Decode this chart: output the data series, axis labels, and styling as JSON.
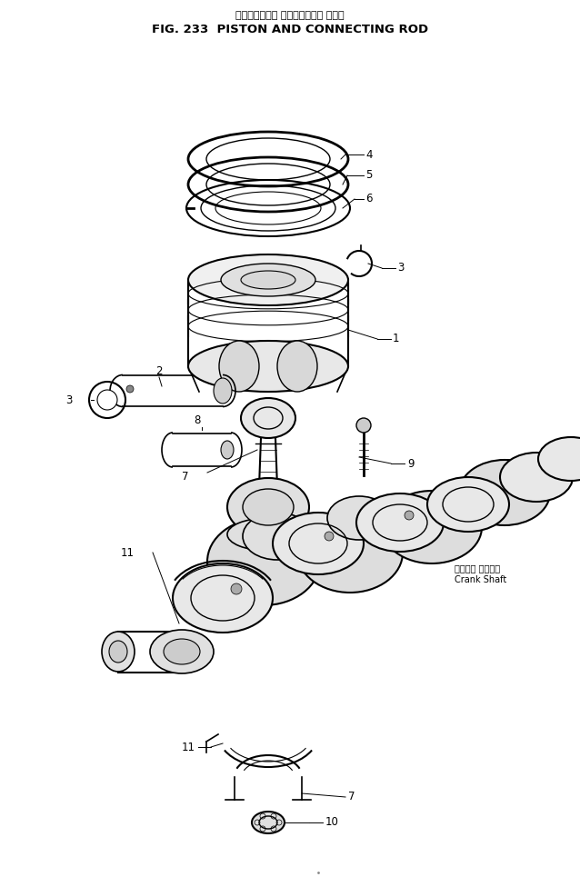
{
  "title_japanese": "ピストンおよび コネクティング ロッド",
  "title_english": "FIG. 233  PISTON AND CONNECTING ROD",
  "bg_color": "#ffffff",
  "line_color": "#000000",
  "label_color": "#000000",
  "fig_width": 638,
  "fig_height": 976,
  "crankshaft_jp": "クランク シャフト",
  "crankshaft_en": "Crank Shaft"
}
